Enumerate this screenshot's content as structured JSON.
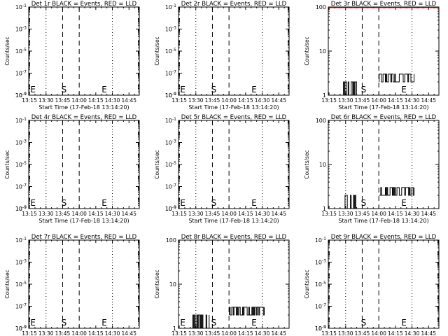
{
  "figure": {
    "common_xlabel": "Start Time (17-Feb-18 13:14:20)",
    "common_ylabel": "Counts/sec",
    "x_ticks": [
      "13:15",
      "13:30",
      "13:45",
      "14:00",
      "14:15",
      "14:30",
      "14:45"
    ],
    "x_tick_minutes": [
      0.67,
      15.67,
      30.67,
      45.67,
      60.67,
      75.67,
      90.67
    ],
    "xlim_minutes": [
      0,
      100
    ],
    "event_line_color": "#000000",
    "lld_line_color": "#ff0000"
  },
  "chart_data": [
    {
      "type": "line",
      "title": "Det 1r BLACK = Events, RED = LLD",
      "yscale": "log",
      "ylim": [
        1e-09,
        0.1
      ],
      "y_ticks": [
        "10^-1",
        "10^-3",
        "10^-5",
        "10^-7",
        "10^-9"
      ],
      "y_tick_values": [
        0.1,
        0.001,
        1e-05,
        1e-07,
        1e-09
      ],
      "dotted_lines": [
        15.67,
        75.67
      ],
      "dashed_lines": [
        30.67,
        45.67
      ],
      "markers": [
        {
          "label": "E",
          "x": 1.5
        },
        {
          "label": "S",
          "x": 29.5
        },
        {
          "label": "E",
          "x": 66
        }
      ],
      "series": []
    },
    {
      "type": "line",
      "title": "Det 2r BLACK = Events, RED = LLD",
      "yscale": "log",
      "ylim": [
        1e-09,
        0.1
      ],
      "y_ticks": [
        "10^-1",
        "10^-3",
        "10^-5",
        "10^-7",
        "10^-9"
      ],
      "y_tick_values": [
        0.1,
        0.001,
        1e-05,
        1e-07,
        1e-09
      ],
      "dotted_lines": [
        15.67,
        75.67
      ],
      "dashed_lines": [
        30.67,
        45.67
      ],
      "markers": [
        {
          "label": "E",
          "x": 1.5
        },
        {
          "label": "S",
          "x": 29.5
        },
        {
          "label": "E",
          "x": 66
        }
      ],
      "series": []
    },
    {
      "type": "line",
      "title": "Det 3r BLACK = Events, RED = LLD",
      "yscale": "log",
      "ylim": [
        1,
        100
      ],
      "y_ticks": [
        "100",
        "10",
        "1"
      ],
      "y_tick_values": [
        100,
        10,
        1
      ],
      "dotted_lines": [
        15.67,
        75.67
      ],
      "dashed_lines": [
        30.67,
        45.67
      ],
      "markers": [
        {
          "label": "S",
          "x": 29.5
        },
        {
          "label": "E",
          "x": 66
        }
      ],
      "series": [
        {
          "color": "black",
          "style": "noise",
          "x_start": 13,
          "x_end": 28,
          "levels": [
            1,
            2
          ]
        },
        {
          "color": "black",
          "style": "noise",
          "x_start": 46,
          "x_end": 78,
          "levels": [
            2,
            3
          ]
        },
        {
          "color": "red",
          "style": "flat",
          "x_start": 0,
          "x_end": 100,
          "y": 105
        }
      ]
    },
    {
      "type": "line",
      "title": "Det 4r BLACK = Events, RED = LLD",
      "yscale": "log",
      "ylim": [
        1e-09,
        0.1
      ],
      "y_ticks": [
        "10^-1",
        "10^-3",
        "10^-5",
        "10^-7",
        "10^-9"
      ],
      "y_tick_values": [
        0.1,
        0.001,
        1e-05,
        1e-07,
        1e-09
      ],
      "dotted_lines": [
        15.67,
        75.67
      ],
      "dashed_lines": [
        30.67,
        45.67
      ],
      "markers": [
        {
          "label": "E",
          "x": 1.5
        },
        {
          "label": "S",
          "x": 29.5
        },
        {
          "label": "E",
          "x": 66
        }
      ],
      "series": []
    },
    {
      "type": "line",
      "title": "Det 5r BLACK = Events, RED = LLD",
      "yscale": "log",
      "ylim": [
        1e-09,
        0.1
      ],
      "y_ticks": [
        "10^-1",
        "10^-3",
        "10^-5",
        "10^-7",
        "10^-9"
      ],
      "y_tick_values": [
        0.1,
        0.001,
        1e-05,
        1e-07,
        1e-09
      ],
      "dotted_lines": [
        15.67,
        75.67
      ],
      "dashed_lines": [
        30.67,
        45.67
      ],
      "markers": [
        {
          "label": "E",
          "x": 1.5
        },
        {
          "label": "S",
          "x": 29.5
        },
        {
          "label": "E",
          "x": 66
        }
      ],
      "series": []
    },
    {
      "type": "line",
      "title": "Det 6r BLACK = Events, RED = LLD",
      "yscale": "log",
      "ylim": [
        1,
        100
      ],
      "y_ticks": [
        "100",
        "10",
        "1"
      ],
      "y_tick_values": [
        100,
        10,
        1
      ],
      "dotted_lines": [
        15.67,
        75.67
      ],
      "dashed_lines": [
        30.67,
        45.67
      ],
      "markers": [
        {
          "label": "S",
          "x": 29.5
        },
        {
          "label": "E",
          "x": 66
        }
      ],
      "series": [
        {
          "color": "black",
          "style": "noise",
          "x_start": 13,
          "x_end": 28,
          "levels": [
            1,
            2
          ]
        },
        {
          "color": "black",
          "style": "noise",
          "x_start": 46,
          "x_end": 78,
          "levels": [
            2,
            3
          ]
        }
      ]
    },
    {
      "type": "line",
      "title": "Det 7r BLACK = Events, RED = LLD",
      "yscale": "log",
      "ylim": [
        1e-09,
        0.1
      ],
      "y_ticks": [
        "10^-1",
        "10^-3",
        "10^-5",
        "10^-7",
        "10^-9"
      ],
      "y_tick_values": [
        0.1,
        0.001,
        1e-05,
        1e-07,
        1e-09
      ],
      "dotted_lines": [
        15.67,
        75.67
      ],
      "dashed_lines": [
        30.67,
        45.67
      ],
      "markers": [
        {
          "label": "E",
          "x": 1.5
        },
        {
          "label": "S",
          "x": 29.5
        },
        {
          "label": "E",
          "x": 66
        }
      ],
      "series": []
    },
    {
      "type": "line",
      "title": "Det 8r BLACK = Events, RED = LLD",
      "yscale": "log",
      "ylim": [
        1,
        100
      ],
      "y_ticks": [
        "100",
        "10",
        "1"
      ],
      "y_tick_values": [
        100,
        10,
        1
      ],
      "dotted_lines": [
        15.67,
        75.67
      ],
      "dashed_lines": [
        30.67,
        45.67
      ],
      "markers": [
        {
          "label": "E",
          "x": 1.5
        },
        {
          "label": "S",
          "x": 29.5
        },
        {
          "label": "E",
          "x": 66
        }
      ],
      "series": [
        {
          "color": "black",
          "style": "noise",
          "x_start": 13,
          "x_end": 28,
          "levels": [
            1,
            2
          ]
        },
        {
          "color": "black",
          "style": "noise",
          "x_start": 46,
          "x_end": 78,
          "levels": [
            2,
            3
          ]
        }
      ]
    },
    {
      "type": "line",
      "title": "Det 9r BLACK = Events, RED = LLD",
      "yscale": "log",
      "ylim": [
        1e-09,
        0.1
      ],
      "y_ticks": [
        "10^-1",
        "10^-3",
        "10^-5",
        "10^-7",
        "10^-9"
      ],
      "y_tick_values": [
        0.1,
        0.001,
        1e-05,
        1e-07,
        1e-09
      ],
      "dotted_lines": [
        15.67,
        75.67
      ],
      "dashed_lines": [
        30.67,
        45.67
      ],
      "markers": [
        {
          "label": "S",
          "x": 29.5
        },
        {
          "label": "E",
          "x": 66
        }
      ],
      "series": []
    }
  ]
}
